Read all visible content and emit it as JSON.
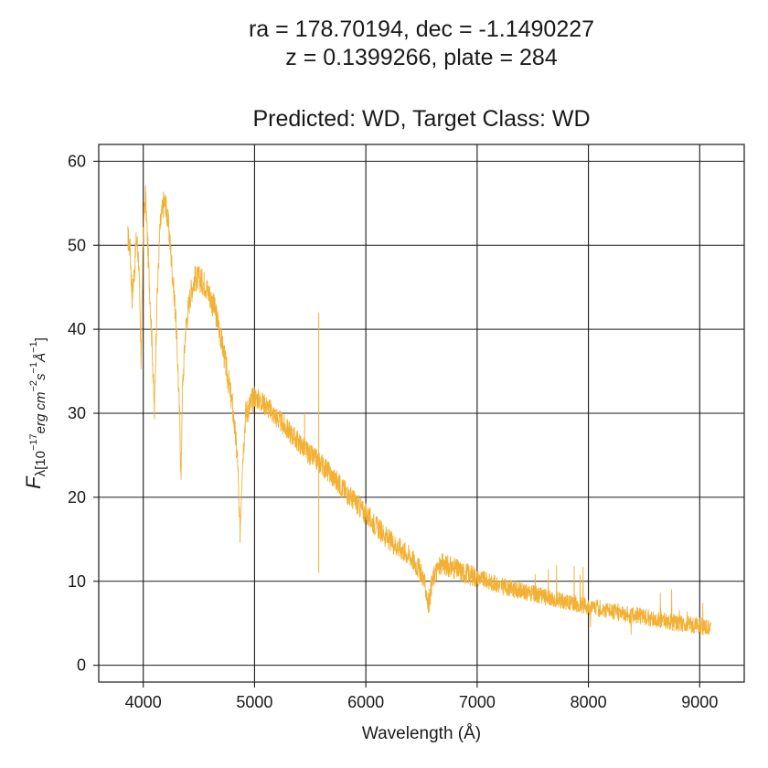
{
  "chart_data": {
    "type": "line",
    "title_line1": "ra = 178.70194, dec = -1.1490227",
    "title_line2": "z = 0.1399266, plate = 284",
    "title_line3": "Predicted: WD, Target Class: WD",
    "xlabel": "Wavelength (Å)",
    "ylabel_main": "F",
    "ylabel_sub": "λ[10",
    "ylabel_sup1": "−17",
    "ylabel_mid": "erg cm",
    "ylabel_sup2": "−2",
    "ylabel_mid2": "s",
    "ylabel_sup3": "−1",
    "ylabel_mid3": "Å",
    "ylabel_sup4": "−1",
    "ylabel_end": "]",
    "xlim": [
      3600,
      9400
    ],
    "ylim": [
      -2,
      62
    ],
    "xticks": [
      4000,
      5000,
      6000,
      7000,
      8000,
      9000
    ],
    "yticks": [
      0,
      10,
      20,
      30,
      40,
      50,
      60
    ],
    "grid": true,
    "series": [
      {
        "color": "#f2b134",
        "x": [
          3860,
          3880,
          3900,
          3920,
          3940,
          3960,
          3970,
          3980,
          3990,
          4000,
          4020,
          4040,
          4060,
          4080,
          4100,
          4120,
          4150,
          4180,
          4200,
          4230,
          4260,
          4290,
          4310,
          4330,
          4340,
          4350,
          4380,
          4420,
          4460,
          4500,
          4550,
          4600,
          4650,
          4700,
          4750,
          4800,
          4830,
          4850,
          4860,
          4870,
          4890,
          4920,
          4960,
          5000,
          5050,
          5100,
          5200,
          5300,
          5400,
          5500,
          5600,
          5700,
          5800,
          5900,
          6000,
          6100,
          6200,
          6300,
          6400,
          6500,
          6540,
          6563,
          6590,
          6620,
          6680,
          6750,
          6850,
          7000,
          7200,
          7400,
          7600,
          7800,
          8000,
          8200,
          8400,
          8600,
          8800,
          9000,
          9100
        ],
        "y": [
          51,
          50,
          44,
          47,
          51,
          48,
          42,
          36,
          44,
          52,
          56,
          50,
          44,
          38,
          30,
          42,
          52,
          55,
          55,
          52,
          47,
          42,
          36,
          28,
          22,
          32,
          40,
          44,
          46,
          46,
          45.5,
          44,
          42,
          39,
          35,
          31,
          27,
          24,
          18,
          16,
          24,
          30,
          31,
          32,
          31.5,
          31,
          29.5,
          28,
          26.5,
          25,
          24,
          22.5,
          21,
          19.5,
          18,
          16.5,
          15,
          14,
          13,
          11,
          9,
          7,
          9.5,
          11,
          12,
          11.8,
          11.2,
          10.5,
          9.5,
          8.8,
          8.2,
          7.6,
          7.0,
          6.5,
          6.0,
          5.5,
          5.0,
          4.7,
          4.4
        ]
      }
    ],
    "spikes": [
      {
        "x": 5577,
        "low": 11,
        "high": 42
      },
      {
        "x": 5450,
        "low": 25,
        "high": 30
      }
    ]
  }
}
